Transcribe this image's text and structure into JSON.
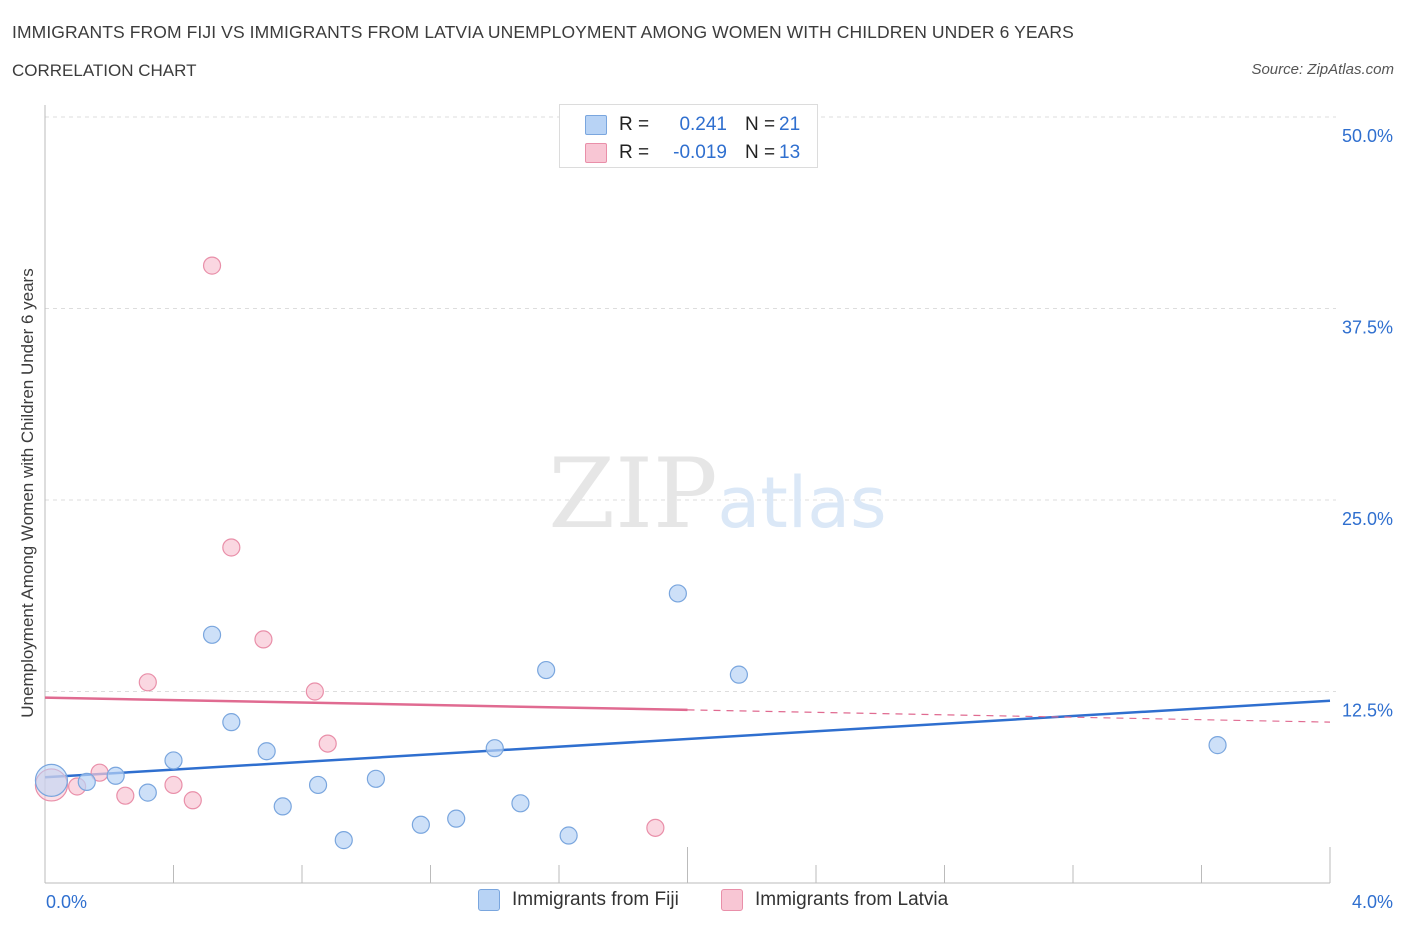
{
  "header": {
    "title": "IMMIGRANTS FROM FIJI VS IMMIGRANTS FROM LATVIA UNEMPLOYMENT AMONG WOMEN WITH CHILDREN UNDER 6 YEARS",
    "subtitle": "CORRELATION CHART",
    "source": "Source: ZipAtlas.com"
  },
  "legend": {
    "fiji": {
      "r_label": "R =",
      "r_value": "0.241",
      "n_label": "N =",
      "n_value": "21"
    },
    "latvia": {
      "r_label": "R =",
      "r_value": "-0.019",
      "n_label": "N =",
      "n_value": "13"
    }
  },
  "colors": {
    "fiji_fill": "#b8d3f5",
    "fiji_stroke": "#7aa6de",
    "fiji_line": "#2f6fcf",
    "latvia_fill": "#f8c6d4",
    "latvia_stroke": "#e98fa9",
    "latvia_line": "#e06b91",
    "axis_text": "#2f6fcf",
    "grid": "#dddddd"
  },
  "watermark": {
    "zip": "ZIP",
    "atlas": "atlas"
  },
  "chart_data": {
    "type": "scatter",
    "title": "IMMIGRANTS FROM FIJI VS IMMIGRANTS FROM LATVIA UNEMPLOYMENT AMONG WOMEN WITH CHILDREN UNDER 6 YEARS",
    "xlabel": "",
    "ylabel": "Unemployment Among Women with Children Under 6 years",
    "xlim": [
      0,
      4.0
    ],
    "ylim": [
      0,
      50
    ],
    "x_tick_labels": [
      "0.0%",
      "4.0%"
    ],
    "y_tick_labels": [
      "12.5%",
      "25.0%",
      "37.5%",
      "50.0%"
    ],
    "y_ticks": [
      12.5,
      25.0,
      37.5,
      50.0
    ],
    "series": [
      {
        "name": "Immigrants from Fiji",
        "points": [
          {
            "x": 0.02,
            "y": 6.7,
            "big": true
          },
          {
            "x": 0.13,
            "y": 6.6
          },
          {
            "x": 0.22,
            "y": 7.0
          },
          {
            "x": 0.32,
            "y": 5.9
          },
          {
            "x": 0.4,
            "y": 8.0
          },
          {
            "x": 0.52,
            "y": 16.2
          },
          {
            "x": 0.58,
            "y": 10.5
          },
          {
            "x": 0.69,
            "y": 8.6
          },
          {
            "x": 0.74,
            "y": 5.0
          },
          {
            "x": 0.85,
            "y": 6.4
          },
          {
            "x": 0.93,
            "y": 2.8
          },
          {
            "x": 1.03,
            "y": 6.8
          },
          {
            "x": 1.17,
            "y": 3.8
          },
          {
            "x": 1.28,
            "y": 4.2
          },
          {
            "x": 1.4,
            "y": 8.8
          },
          {
            "x": 1.48,
            "y": 5.2
          },
          {
            "x": 1.56,
            "y": 13.9
          },
          {
            "x": 1.63,
            "y": 3.1
          },
          {
            "x": 1.97,
            "y": 18.9
          },
          {
            "x": 2.16,
            "y": 13.6
          },
          {
            "x": 3.65,
            "y": 9.0
          }
        ],
        "trend": {
          "x0": 0.0,
          "y0": 6.9,
          "x1": 4.0,
          "y1": 11.9
        }
      },
      {
        "name": "Immigrants from Latvia",
        "points": [
          {
            "x": 0.02,
            "y": 6.4,
            "big": true
          },
          {
            "x": 0.1,
            "y": 6.3
          },
          {
            "x": 0.17,
            "y": 7.2
          },
          {
            "x": 0.25,
            "y": 5.7
          },
          {
            "x": 0.32,
            "y": 13.1
          },
          {
            "x": 0.4,
            "y": 6.4
          },
          {
            "x": 0.46,
            "y": 5.4
          },
          {
            "x": 0.52,
            "y": 40.3
          },
          {
            "x": 0.58,
            "y": 21.9
          },
          {
            "x": 0.68,
            "y": 15.9
          },
          {
            "x": 0.84,
            "y": 12.5
          },
          {
            "x": 0.88,
            "y": 9.1
          },
          {
            "x": 1.9,
            "y": 3.6
          }
        ],
        "trend": {
          "x0": 0.0,
          "y0": 12.1,
          "x1": 2.0,
          "y1": 11.3,
          "dash_to_x": 4.0,
          "dash_to_y": 10.5
        }
      }
    ]
  }
}
